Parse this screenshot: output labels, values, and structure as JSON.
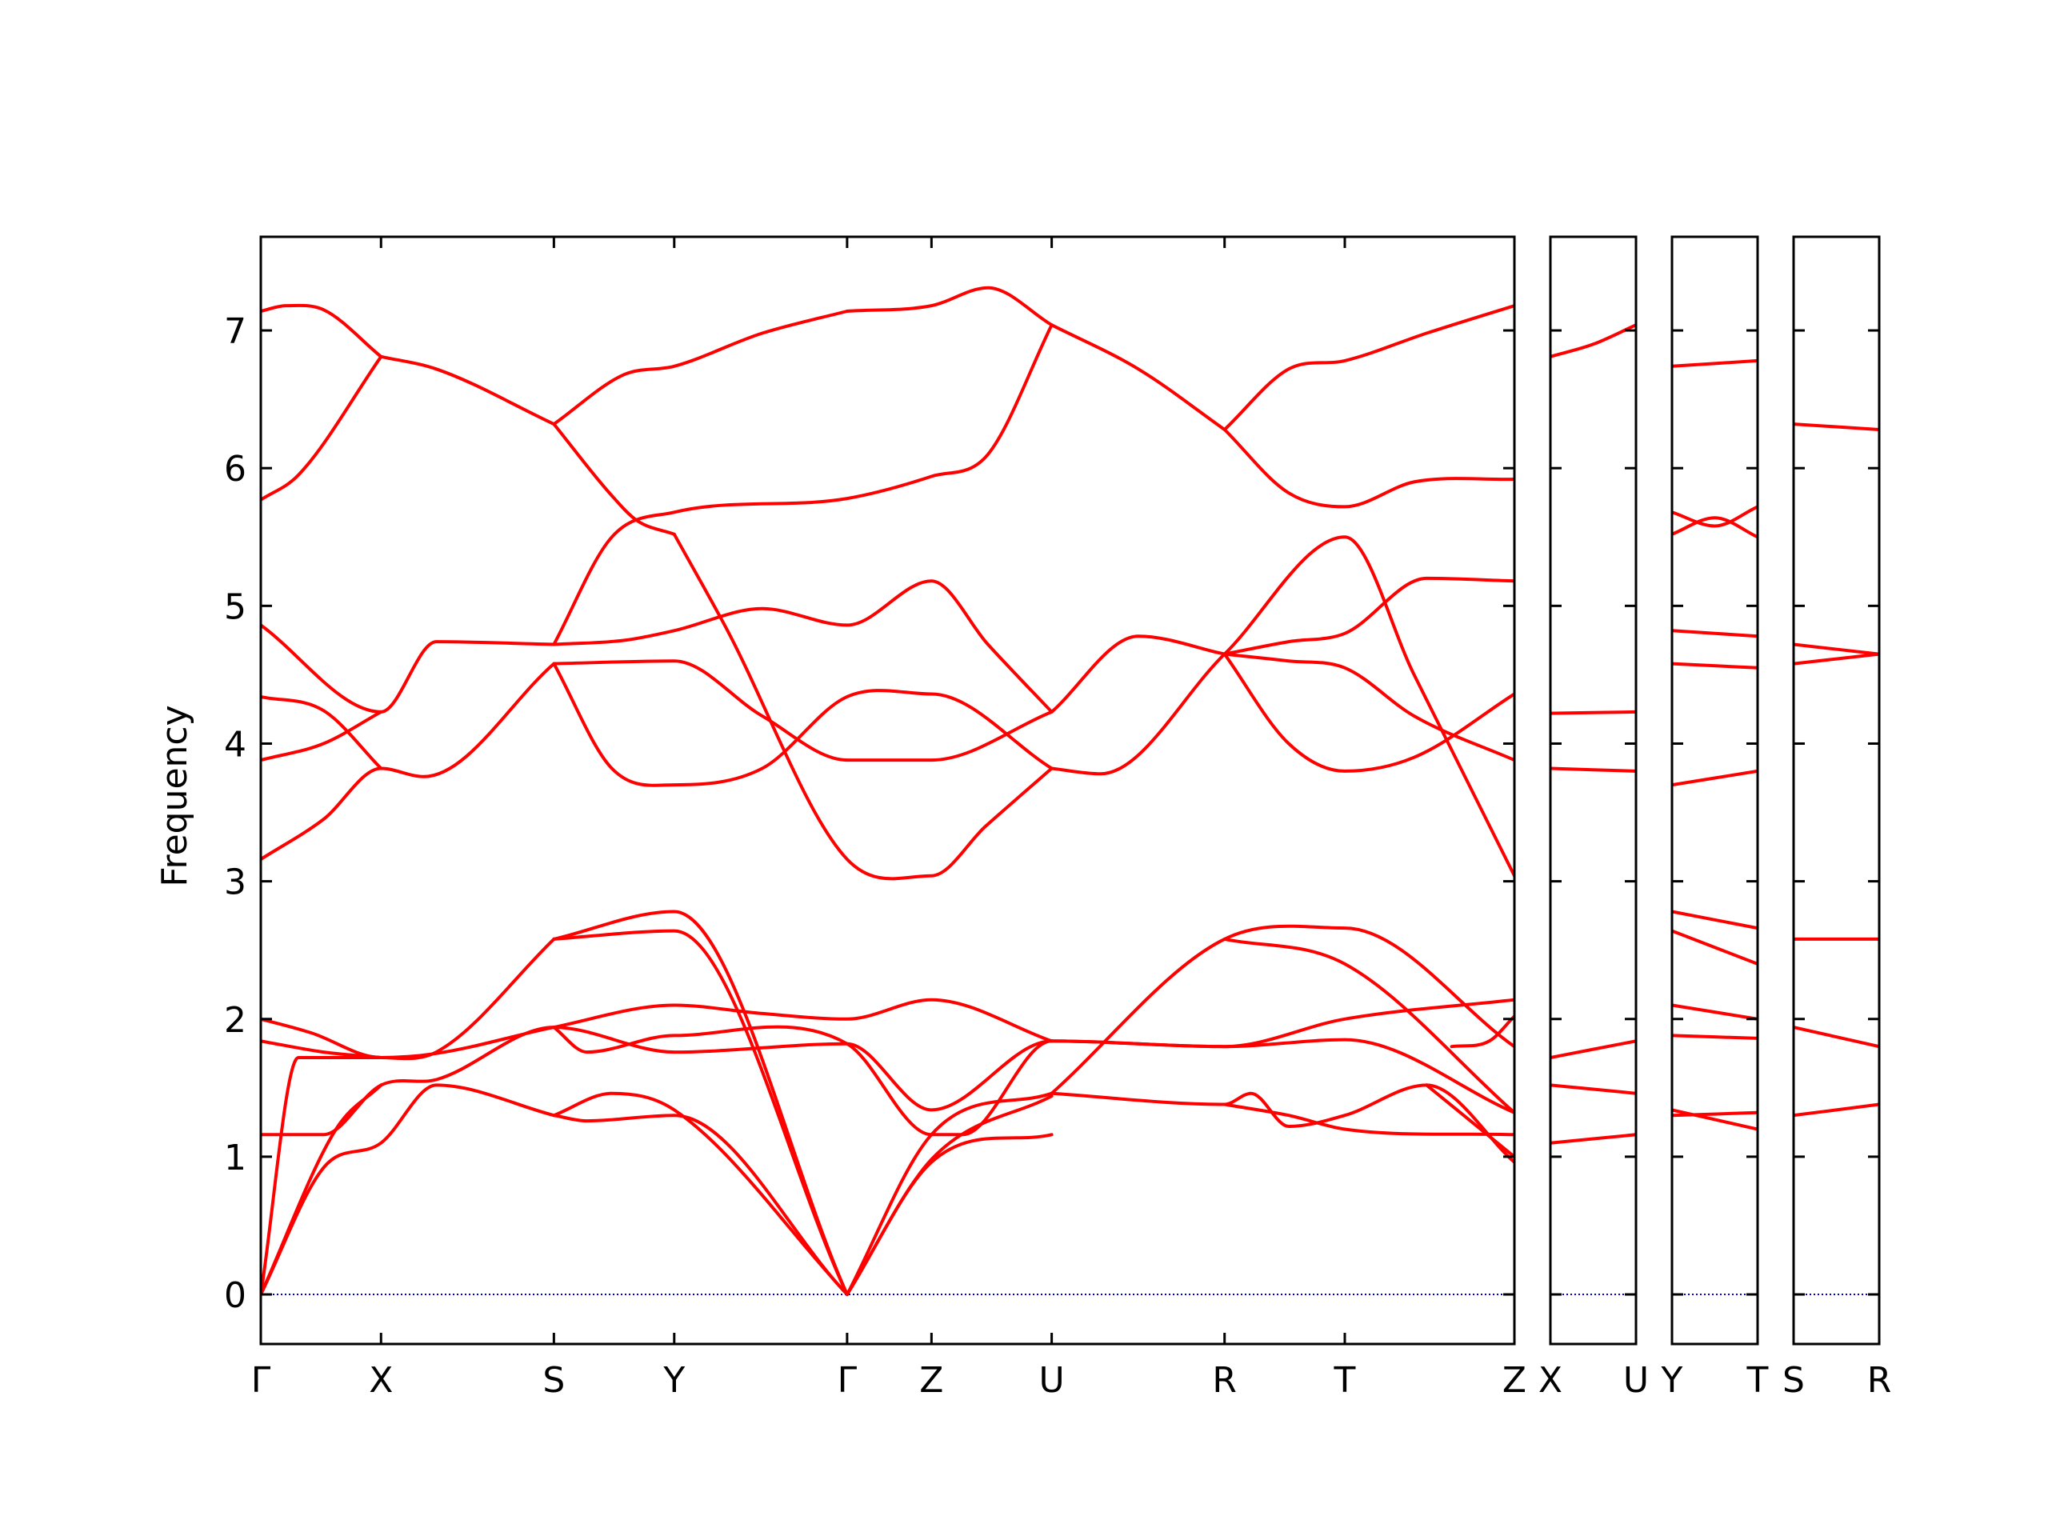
{
  "chart_data": {
    "type": "line",
    "title": "",
    "ylabel": "Frequency",
    "xlabel": "",
    "ylim": [
      -0.36,
      7.68
    ],
    "yticks": [
      0,
      1,
      2,
      3,
      4,
      5,
      6,
      7
    ],
    "grid": false,
    "legend": "none",
    "line_color": "#ff0000",
    "zero_line_color": "#0000cc",
    "panels": [
      {
        "labels": [
          "Γ",
          "X",
          "S",
          "Y",
          "Γ",
          "Z",
          "U",
          "R",
          "T",
          "Z"
        ],
        "x": [
          0,
          0.0959,
          0.2338,
          0.3298,
          0.4677,
          0.535,
          0.6309,
          0.7688,
          0.8647,
          1.0
        ],
        "series": [
          {
            "x": [
              0,
              0.02,
              0.05,
              0.0959
            ],
            "y": [
              7.14,
              7.18,
              7.15,
              6.81
            ]
          },
          {
            "x": [
              0,
              0.03,
              0.0959
            ],
            "y": [
              5.77,
              5.95,
              6.81
            ]
          },
          {
            "x": [
              0.0959,
              0.14,
              0.2338
            ],
            "y": [
              6.81,
              6.72,
              6.32
            ]
          },
          {
            "x": [
              0.2338,
              0.29,
              0.3298,
              0.4,
              0.4677
            ],
            "y": [
              6.32,
              6.68,
              6.74,
              6.98,
              7.14
            ]
          },
          {
            "x": [
              0.2338,
              0.28,
              0.3,
              0.3298
            ],
            "y": [
              6.32,
              5.8,
              5.62,
              5.52
            ]
          },
          {
            "x": [
              0.4677,
              0.535,
              0.58,
              0.6309
            ],
            "y": [
              7.14,
              7.18,
              7.31,
              7.04
            ]
          },
          {
            "x": [
              0.6309,
              0.7,
              0.7688
            ],
            "y": [
              7.04,
              6.72,
              6.28
            ]
          },
          {
            "x": [
              0.7688,
              0.82,
              0.8647,
              0.93,
              1.0
            ],
            "y": [
              6.28,
              6.72,
              6.78,
              6.98,
              7.18
            ]
          },
          {
            "x": [
              0.7688,
              0.82,
              0.8647,
              0.92,
              1.0
            ],
            "y": [
              6.28,
              5.82,
              5.72,
              5.9,
              5.92
            ]
          },
          {
            "x": [
              0.2338,
              0.28,
              0.3298,
              0.4677,
              0.535,
              0.58,
              0.6309
            ],
            "y": [
              4.72,
              5.5,
              5.68,
              5.78,
              5.94,
              6.1,
              7.04
            ]
          },
          {
            "x": [
              0.3298,
              0.37,
              0.4677,
              0.535,
              0.5782,
              0.6309
            ],
            "y": [
              5.52,
              4.86,
              3.16,
              3.04,
              3.4,
              3.82
            ]
          },
          {
            "x": [
              0,
              0.0959,
              0.14,
              0.2338
            ],
            "y": [
              4.86,
              4.23,
              4.74,
              4.72
            ]
          },
          {
            "x": [
              0.2338,
              0.29,
              0.3298,
              0.4,
              0.4677,
              0.535,
              0.58,
              0.6309
            ],
            "y": [
              4.72,
              4.75,
              4.82,
              4.98,
              4.86,
              5.18,
              4.72,
              4.23
            ]
          },
          {
            "x": [
              0.6309,
              0.7,
              0.7688
            ],
            "y": [
              4.23,
              4.78,
              4.65
            ]
          },
          {
            "x": [
              0.7688,
              0.82,
              0.8647,
              0.93,
              1.0
            ],
            "y": [
              4.65,
              4.74,
              4.8,
              5.2,
              5.18
            ]
          },
          {
            "x": [
              0.7688,
              0.8647,
              0.92,
              1.0
            ],
            "y": [
              4.65,
              5.5,
              4.5,
              3.04
            ]
          },
          {
            "x": [
              0.7688,
              0.82,
              0.8647,
              0.92,
              1.0
            ],
            "y": [
              4.65,
              4.6,
              4.55,
              4.2,
              3.88
            ]
          },
          {
            "x": [
              0.7688,
              0.82,
              0.8647,
              0.92,
              1.0
            ],
            "y": [
              4.65,
              4.0,
              3.8,
              3.9,
              4.36
            ]
          },
          {
            "x": [
              0,
              0.05,
              0.0959
            ],
            "y": [
              4.34,
              4.24,
              3.82
            ]
          },
          {
            "x": [
              0,
              0.05,
              0.0959
            ],
            "y": [
              3.88,
              4.0,
              4.23
            ]
          },
          {
            "x": [
              0,
              0.05,
              0.0959,
              0.13,
              0.2338
            ],
            "y": [
              3.16,
              3.45,
              3.82,
              3.76,
              4.58
            ]
          },
          {
            "x": [
              0.2338,
              0.28,
              0.3298,
              0.4,
              0.4677,
              0.535,
              0.6309
            ],
            "y": [
              4.58,
              3.82,
              3.7,
              3.82,
              4.34,
              4.36,
              3.82
            ]
          },
          {
            "x": [
              0.2338,
              0.3298,
              0.4,
              0.4677,
              0.535,
              0.6309
            ],
            "y": [
              4.58,
              4.6,
              4.2,
              3.88,
              3.88,
              4.23
            ]
          },
          {
            "x": [
              0.6309,
              0.67,
              0.7688
            ],
            "y": [
              3.82,
              3.78,
              4.65
            ]
          },
          {
            "x": [
              0,
              0.04,
              0.0959,
              0.14,
              0.2338,
              0.3298,
              0.4,
              0.4677,
              0.535,
              0.6309
            ],
            "y": [
              2.0,
              1.9,
              1.72,
              1.75,
              1.94,
              2.1,
              2.04,
              2.0,
              2.14,
              1.84
            ]
          },
          {
            "x": [
              0,
              0.05,
              0.0959
            ],
            "y": [
              1.84,
              1.76,
              1.72
            ]
          },
          {
            "x": [
              0,
              0.05,
              0.0959,
              0.14,
              0.2338,
              0.3298,
              0.4677,
              0.535,
              0.6309,
              0.7688,
              0.8647,
              1.0
            ],
            "y": [
              1.16,
              1.16,
              1.52,
              1.56,
              1.94,
              1.76,
              1.82,
              1.34,
              1.84,
              1.8,
              2.0,
              2.14
            ]
          },
          {
            "x": [
              0.2338,
              0.26,
              0.3298,
              0.4677,
              0.535,
              0.56,
              0.6309,
              0.7688,
              0.8647,
              1.0
            ],
            "y": [
              1.94,
              1.76,
              1.88,
              1.82,
              1.16,
              1.16,
              1.84,
              1.8,
              1.85,
              1.32
            ]
          },
          {
            "x": [
              0,
              0.03,
              0.0959,
              0.14,
              0.2338
            ],
            "y": [
              0,
              1.72,
              1.72,
              1.76,
              2.58
            ]
          },
          {
            "x": [
              0,
              0.05,
              0.0959,
              0.14,
              0.2338
            ],
            "y": [
              0,
              0.92,
              1.1,
              1.52,
              1.3
            ]
          },
          {
            "x": [
              0,
              0.06,
              0.0959
            ],
            "y": [
              0,
              1.2,
              1.52
            ]
          },
          {
            "x": [
              0.2338,
              0.3298,
              0.4677
            ],
            "y": [
              2.58,
              2.64,
              0
            ]
          },
          {
            "x": [
              0.2338,
              0.3298,
              0.4677
            ],
            "y": [
              2.58,
              2.78,
              0
            ]
          },
          {
            "x": [
              0.2338,
              0.28,
              0.3298,
              0.4677
            ],
            "y": [
              1.3,
              1.46,
              1.34,
              0
            ]
          },
          {
            "x": [
              0.2338,
              0.26,
              0.3298,
              0.4677
            ],
            "y": [
              1.3,
              1.26,
              1.3,
              0
            ]
          },
          {
            "x": [
              0.4677,
              0.535,
              0.6309
            ],
            "y": [
              0,
              1.16,
              1.46
            ]
          },
          {
            "x": [
              0.4677,
              0.535,
              0.6309
            ],
            "y": [
              0,
              0.96,
              1.16
            ]
          },
          {
            "x": [
              0.4677,
              0.535,
              0.6309
            ],
            "y": [
              0,
              0.98,
              1.44
            ]
          },
          {
            "x": [
              0.6309,
              0.7688,
              0.8647,
              1.0
            ],
            "y": [
              1.46,
              2.58,
              2.66,
              1.8
            ]
          },
          {
            "x": [
              0.7688,
              0.8647,
              1.0
            ],
            "y": [
              2.58,
              2.4,
              1.32
            ]
          },
          {
            "x": [
              0.6309,
              0.7688,
              0.79,
              0.82,
              0.8647,
              0.93,
              1.0
            ],
            "y": [
              1.46,
              1.38,
              1.46,
              1.22,
              1.3,
              1.52,
              0.96
            ]
          },
          {
            "x": [
              0.7688,
              0.82,
              0.8647,
              1.0
            ],
            "y": [
              1.38,
              1.3,
              1.2,
              1.16
            ]
          },
          {
            "x": [
              0.95,
              0.98,
              1.0
            ],
            "y": [
              1.8,
              1.84,
              2.02
            ]
          },
          {
            "x": [
              0.93,
              1.0
            ],
            "y": [
              1.52,
              1.0
            ]
          }
        ]
      },
      {
        "labels": [
          "X",
          "U"
        ],
        "x": [
          0,
          1
        ],
        "series": [
          {
            "x": [
              0,
              0.5,
              1
            ],
            "y": [
              6.81,
              6.9,
              7.04
            ]
          },
          {
            "x": [
              0,
              1
            ],
            "y": [
              4.22,
              4.23
            ]
          },
          {
            "x": [
              0,
              1
            ],
            "y": [
              3.82,
              3.8
            ]
          },
          {
            "x": [
              0,
              0.5,
              1
            ],
            "y": [
              1.72,
              1.78,
              1.84
            ]
          },
          {
            "x": [
              0,
              1
            ],
            "y": [
              1.52,
              1.46
            ]
          },
          {
            "x": [
              0,
              1
            ],
            "y": [
              1.1,
              1.16
            ]
          }
        ]
      },
      {
        "labels": [
          "Y",
          "T"
        ],
        "x": [
          0,
          1
        ],
        "series": [
          {
            "x": [
              0,
              1
            ],
            "y": [
              6.74,
              6.78
            ]
          },
          {
            "x": [
              0,
              0.5,
              1
            ],
            "y": [
              5.68,
              5.58,
              5.72
            ]
          },
          {
            "x": [
              0,
              0.5,
              1
            ],
            "y": [
              5.52,
              5.64,
              5.5
            ]
          },
          {
            "x": [
              0,
              1
            ],
            "y": [
              4.82,
              4.78
            ]
          },
          {
            "x": [
              0,
              1
            ],
            "y": [
              4.58,
              4.55
            ]
          },
          {
            "x": [
              0,
              1
            ],
            "y": [
              3.7,
              3.8
            ]
          },
          {
            "x": [
              0,
              1
            ],
            "y": [
              2.78,
              2.66
            ]
          },
          {
            "x": [
              0,
              1
            ],
            "y": [
              2.64,
              2.4
            ]
          },
          {
            "x": [
              0,
              1
            ],
            "y": [
              2.1,
              2.0
            ]
          },
          {
            "x": [
              0,
              1
            ],
            "y": [
              1.88,
              1.86
            ]
          },
          {
            "x": [
              0,
              1
            ],
            "y": [
              1.34,
              1.2
            ]
          },
          {
            "x": [
              0,
              1
            ],
            "y": [
              1.3,
              1.32
            ]
          }
        ]
      },
      {
        "labels": [
          "S",
          "R"
        ],
        "x": [
          0,
          1
        ],
        "series": [
          {
            "x": [
              0,
              1
            ],
            "y": [
              6.32,
              6.28
            ]
          },
          {
            "x": [
              0,
              1
            ],
            "y": [
              4.72,
              4.65
            ]
          },
          {
            "x": [
              0,
              1
            ],
            "y": [
              4.58,
              4.65
            ]
          },
          {
            "x": [
              0,
              1
            ],
            "y": [
              2.58,
              2.58
            ]
          },
          {
            "x": [
              0,
              1
            ],
            "y": [
              1.94,
              1.8
            ]
          },
          {
            "x": [
              0,
              1
            ],
            "y": [
              1.3,
              1.38
            ]
          }
        ]
      }
    ]
  }
}
